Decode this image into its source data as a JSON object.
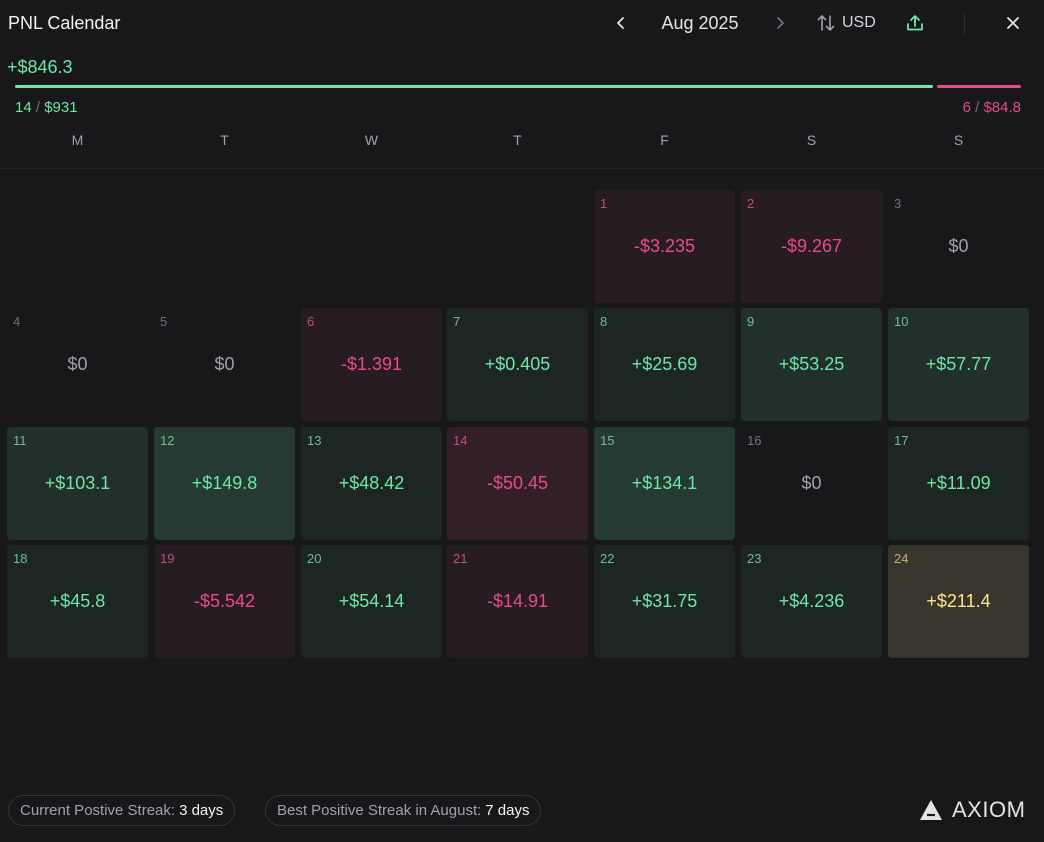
{
  "header": {
    "title": "PNL Calendar",
    "month": "Aug 2025",
    "currency": "USD"
  },
  "summary": {
    "total_pnl": "+$846.3",
    "win_days": "14",
    "win_amount": "$931",
    "loss_days": "6",
    "loss_amount": "$84.8",
    "win_fraction": 0.9166,
    "separator": "/"
  },
  "weekdays": [
    "M",
    "T",
    "W",
    "T",
    "F",
    "S",
    "S"
  ],
  "days": [
    {
      "day": "1",
      "pnl": "-$3.235",
      "tone": "neg"
    },
    {
      "day": "2",
      "pnl": "-$9.267",
      "tone": "neg"
    },
    {
      "day": "3",
      "pnl": "$0",
      "tone": "zero"
    },
    {
      "day": "4",
      "pnl": "$0",
      "tone": "zero"
    },
    {
      "day": "5",
      "pnl": "$0",
      "tone": "zero"
    },
    {
      "day": "6",
      "pnl": "-$1.391",
      "tone": "neg"
    },
    {
      "day": "7",
      "pnl": "+$0.405",
      "tone": "pos"
    },
    {
      "day": "8",
      "pnl": "+$25.69",
      "tone": "pos"
    },
    {
      "day": "9",
      "pnl": "+$53.25",
      "tone": "pos2"
    },
    {
      "day": "10",
      "pnl": "+$57.77",
      "tone": "pos2"
    },
    {
      "day": "11",
      "pnl": "+$103.1",
      "tone": "pos2"
    },
    {
      "day": "12",
      "pnl": "+$149.8",
      "tone": "pos3"
    },
    {
      "day": "13",
      "pnl": "+$48.42",
      "tone": "pos"
    },
    {
      "day": "14",
      "pnl": "-$50.45",
      "tone": "neg2"
    },
    {
      "day": "15",
      "pnl": "+$134.1",
      "tone": "pos3"
    },
    {
      "day": "16",
      "pnl": "$0",
      "tone": "zero"
    },
    {
      "day": "17",
      "pnl": "+$11.09",
      "tone": "pos"
    },
    {
      "day": "18",
      "pnl": "+$45.8",
      "tone": "pos"
    },
    {
      "day": "19",
      "pnl": "-$5.542",
      "tone": "neg"
    },
    {
      "day": "20",
      "pnl": "+$54.14",
      "tone": "pos"
    },
    {
      "day": "21",
      "pnl": "-$14.91",
      "tone": "neg"
    },
    {
      "day": "22",
      "pnl": "+$31.75",
      "tone": "pos"
    },
    {
      "day": "23",
      "pnl": "+$4.236",
      "tone": "pos"
    },
    {
      "day": "24",
      "pnl": "+$211.4",
      "tone": "best"
    }
  ],
  "footer": {
    "current_streak_label": "Current Postive Streak:",
    "current_streak_value": "3 days",
    "best_streak_label": "Best Positive Streak in August:",
    "best_streak_value": "7 days",
    "brand": "AXIOM"
  },
  "icons": {
    "prev": "chevron-left-icon",
    "next": "chevron-right-icon",
    "currency": "swap-vertical-icon",
    "share": "upload-icon",
    "close": "close-icon",
    "brand": "axiom-logo-icon"
  },
  "colors": {
    "positive": "#6ee7a8",
    "negative": "#ea4c89",
    "best": "#fde68a",
    "background": "#18181b"
  }
}
